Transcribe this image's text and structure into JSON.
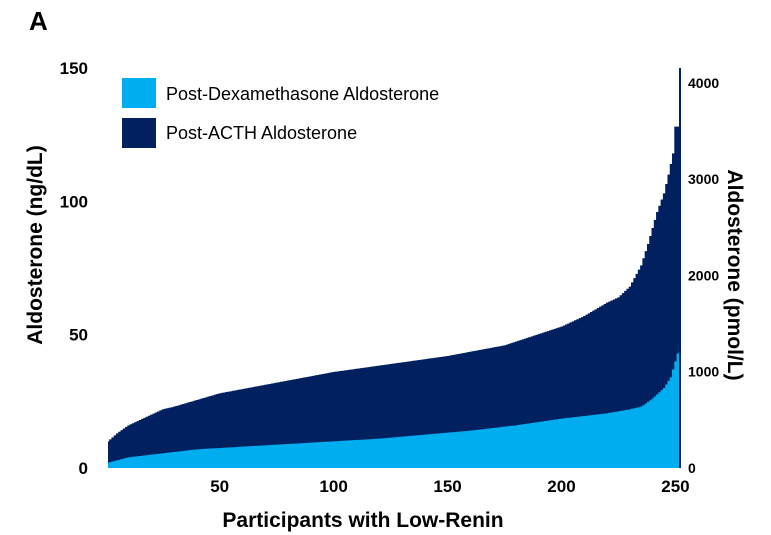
{
  "panel_label": "A",
  "chart_data": {
    "type": "area",
    "title": "",
    "xlabel": "Participants with Low-Renin",
    "ylabel": "Aldosterone (ng/dL)",
    "ylabel_right": "Aldosterone (pmol/L)",
    "xlim": [
      1,
      252
    ],
    "ylim": [
      0,
      150
    ],
    "ylim_right": [
      0,
      4155
    ],
    "xticks": [
      50,
      100,
      150,
      200,
      250
    ],
    "yticks": [
      0,
      50,
      100,
      150
    ],
    "yticks_right": [
      0,
      1000,
      2000,
      3000,
      4000
    ],
    "grid": false,
    "legend_position": "top-left",
    "step": true,
    "series": [
      {
        "name": "Post-Dexamethasone Aldosterone",
        "color": "#00adef",
        "x": [
          1,
          10,
          20,
          30,
          40,
          50,
          60,
          80,
          100,
          120,
          140,
          160,
          180,
          200,
          220,
          230,
          235,
          240,
          245,
          248,
          250,
          252
        ],
        "values": [
          2,
          4,
          5,
          6,
          7,
          7.5,
          8,
          9,
          10,
          11,
          12.5,
          14,
          16,
          18.5,
          20.5,
          22,
          23,
          26,
          30,
          34,
          40,
          46
        ]
      },
      {
        "name": "Post-ACTH Aldosterone",
        "color": "#002060",
        "x": [
          1,
          5,
          10,
          15,
          20,
          25,
          30,
          40,
          50,
          75,
          100,
          125,
          150,
          175,
          200,
          210,
          220,
          225,
          230,
          235,
          238,
          240,
          242,
          245,
          247,
          249,
          250,
          252
        ],
        "values": [
          10,
          13,
          16,
          18,
          20,
          22,
          23,
          25.5,
          28,
          32,
          36,
          39,
          42,
          46,
          53,
          57,
          62,
          64,
          68,
          76,
          84,
          90,
          96,
          103,
          110,
          118,
          128,
          128
        ]
      }
    ]
  }
}
